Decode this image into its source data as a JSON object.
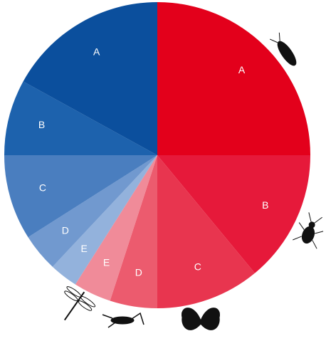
{
  "chart_data": {
    "type": "pie",
    "categories": [
      "A",
      "B",
      "C",
      "D",
      "E",
      "E",
      "D",
      "C",
      "B",
      "A"
    ],
    "values": [
      25,
      14,
      11,
      5,
      4,
      3,
      4,
      9,
      8,
      17
    ],
    "colors": [
      "#e3001b",
      "#e6193a",
      "#e8354f",
      "#ec5b6e",
      "#f08b99",
      "#93b2dc",
      "#7199cf",
      "#4a7ebf",
      "#1d62ad",
      "#0b4f9d"
    ]
  }
}
